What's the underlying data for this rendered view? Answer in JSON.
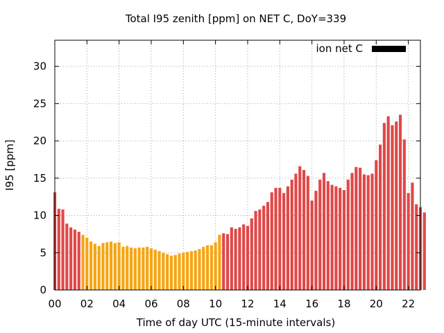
{
  "chart_data": {
    "type": "bar",
    "title": "Total I95 zenith [ppm] on NET C, DoY=339",
    "xlabel": "Time of day UTC (15-minute intervals)",
    "ylabel": "I95 [ppm]",
    "xlim": [
      0,
      22.75
    ],
    "ylim": [
      0,
      33.5
    ],
    "x_step_hours": 0.25,
    "x_ticks": [
      0,
      2,
      4,
      6,
      8,
      10,
      12,
      14,
      16,
      18,
      20,
      22
    ],
    "x_tick_labels": [
      "00",
      "02",
      "04",
      "06",
      "08",
      "10",
      "12",
      "14",
      "16",
      "18",
      "20",
      "22"
    ],
    "y_ticks": [
      0,
      5,
      10,
      15,
      20,
      25,
      30
    ],
    "y_tick_labels": [
      "0",
      "5",
      "10",
      "15",
      "20",
      "25",
      "30"
    ],
    "grid": true,
    "legend_position": "top-right",
    "legend": {
      "label": "ion net C",
      "color": "#000000"
    },
    "colors": {
      "high": "#e04848",
      "low": "#f5a514"
    },
    "threshold_note": "orange bars are the values below ~7.5, red bars the rest",
    "series": [
      {
        "values": [
          13.1,
          10.9,
          10.8,
          8.9,
          8.4,
          8.1,
          7.8,
          7.4,
          7.0,
          6.5,
          6.2,
          5.9,
          6.3,
          6.4,
          6.5,
          6.3,
          6.4,
          5.8,
          5.9,
          5.7,
          5.6,
          5.7,
          5.7,
          5.8,
          5.6,
          5.4,
          5.2,
          5.0,
          4.8,
          4.6,
          4.7,
          4.9,
          5.0,
          5.1,
          5.2,
          5.3,
          5.5,
          5.8,
          6.0,
          6.0,
          6.4,
          7.4,
          7.6,
          7.5,
          8.4,
          8.2,
          8.4,
          8.8,
          8.6,
          9.6,
          10.6,
          10.8,
          11.3,
          11.8,
          13.1,
          13.7,
          13.7,
          13.0,
          13.9,
          14.8,
          15.6,
          16.6,
          16.1,
          15.3,
          12.0,
          13.3,
          14.8,
          15.7,
          14.6,
          14.1,
          13.9,
          13.7,
          13.4,
          14.8,
          15.7,
          16.5,
          16.4,
          15.5,
          15.4,
          15.6,
          17.4,
          19.5,
          22.4,
          23.3,
          22.1,
          22.6,
          23.5,
          20.2,
          13.0,
          14.4,
          11.5,
          11.1,
          10.4
        ]
      }
    ]
  }
}
